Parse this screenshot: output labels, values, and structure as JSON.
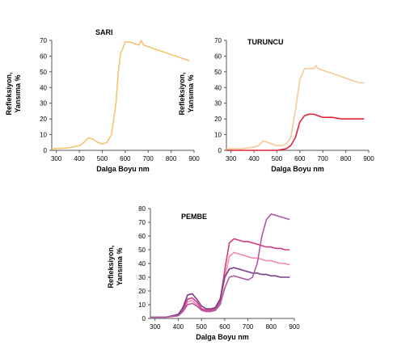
{
  "colors": {
    "yellow": "#f5c46e",
    "light_orange": "#f8c896",
    "red": "#e0253a",
    "light_pink": "#f08cb0",
    "magenta": "#d23c82",
    "purple": "#7a3c8c",
    "violet": "#b45aa0",
    "axis": "#555555"
  },
  "chart_data": [
    {
      "type": "line",
      "title": "SARI",
      "xlabel": "Dalga Boyu nm",
      "ylabel": [
        "Refleksiyon,",
        "Yansıma %"
      ],
      "xlim": [
        280,
        900
      ],
      "ylim": [
        0,
        70
      ],
      "x_ticks": [
        300,
        400,
        500,
        600,
        700,
        800,
        900
      ],
      "y_ticks": [
        0,
        10,
        20,
        30,
        40,
        50,
        60,
        70
      ],
      "grid": false,
      "series": [
        {
          "color": "#f5c46e",
          "x": [
            280,
            350,
            400,
            420,
            440,
            460,
            480,
            500,
            520,
            540,
            560,
            570,
            580,
            590,
            600,
            620,
            640,
            660,
            670,
            680,
            700,
            720,
            740,
            760,
            780,
            800,
            820,
            840,
            860,
            880
          ],
          "y": [
            1,
            1.5,
            3,
            5,
            8,
            7,
            5,
            4,
            5,
            10,
            30,
            50,
            62,
            65,
            69,
            69,
            68,
            67,
            70,
            67,
            66,
            65,
            64,
            63,
            62,
            61,
            60,
            59,
            58,
            57
          ]
        }
      ]
    },
    {
      "type": "line",
      "title": "TURUNCU",
      "xlabel": "Dalga Boyu nm",
      "ylabel": [
        "Refleksiyon,",
        "Yansıma %"
      ],
      "xlim": [
        280,
        900
      ],
      "ylim": [
        0,
        70
      ],
      "x_ticks": [
        300,
        400,
        500,
        600,
        700,
        800,
        900
      ],
      "y_ticks": [
        0,
        10,
        20,
        30,
        40,
        50,
        60,
        70
      ],
      "grid": false,
      "series": [
        {
          "color": "#f8c896",
          "x": [
            280,
            350,
            400,
            420,
            440,
            460,
            480,
            500,
            520,
            540,
            560,
            580,
            600,
            620,
            640,
            660,
            670,
            680,
            700,
            720,
            740,
            760,
            780,
            800,
            820,
            840,
            860,
            880
          ],
          "y": [
            1,
            1,
            2,
            3,
            6,
            5,
            4,
            3,
            3,
            4,
            8,
            25,
            45,
            52,
            52,
            52,
            54,
            52,
            51,
            50,
            49,
            48,
            47,
            46,
            45,
            44,
            43,
            43
          ]
        },
        {
          "color": "#e0253a",
          "x": [
            280,
            350,
            400,
            450,
            500,
            540,
            560,
            580,
            600,
            620,
            640,
            660,
            680,
            700,
            740,
            780,
            820,
            860,
            880
          ],
          "y": [
            0,
            0,
            0,
            0,
            0,
            1,
            3,
            8,
            18,
            22,
            23,
            23,
            22,
            21,
            21,
            20,
            20,
            20,
            20
          ]
        }
      ]
    },
    {
      "type": "line",
      "title": "PEMBE",
      "xlabel": "Dalga Boyu nm",
      "ylabel": [
        "Refleksiyon,",
        "Yansıma %"
      ],
      "xlim": [
        280,
        900
      ],
      "ylim": [
        0,
        80
      ],
      "x_ticks": [
        300,
        400,
        500,
        600,
        700,
        800,
        900
      ],
      "y_ticks": [
        0,
        10,
        20,
        30,
        40,
        50,
        60,
        70,
        80
      ],
      "grid": false,
      "series": [
        {
          "color": "#f08cb0",
          "x": [
            280,
            350,
            400,
            420,
            440,
            460,
            480,
            500,
            520,
            540,
            560,
            580,
            600,
            620,
            640,
            660,
            680,
            700,
            720,
            740,
            760,
            780,
            800,
            820,
            840,
            860,
            880
          ],
          "y": [
            1,
            1,
            2,
            5,
            12,
            13,
            10,
            6,
            5,
            5,
            6,
            10,
            30,
            45,
            48,
            47,
            46,
            45,
            44,
            44,
            43,
            42,
            42,
            41,
            40,
            40,
            39
          ]
        },
        {
          "color": "#d23c82",
          "x": [
            280,
            350,
            400,
            420,
            440,
            460,
            480,
            500,
            520,
            540,
            560,
            580,
            600,
            620,
            640,
            660,
            680,
            700,
            720,
            740,
            760,
            780,
            800,
            820,
            840,
            860,
            880
          ],
          "y": [
            1,
            1,
            2,
            6,
            14,
            15,
            12,
            7,
            6,
            6,
            7,
            12,
            35,
            55,
            58,
            57,
            56,
            56,
            55,
            54,
            53,
            52,
            52,
            51,
            51,
            50,
            50
          ]
        },
        {
          "color": "#7a3c8c",
          "x": [
            280,
            350,
            400,
            420,
            440,
            460,
            480,
            500,
            520,
            540,
            560,
            580,
            600,
            620,
            640,
            660,
            680,
            700,
            720,
            740,
            760,
            780,
            800,
            820,
            840,
            860,
            880
          ],
          "y": [
            1,
            1,
            3,
            8,
            17,
            18,
            14,
            9,
            7,
            7,
            8,
            14,
            30,
            36,
            37,
            36,
            35,
            34,
            33,
            33,
            32,
            32,
            31,
            31,
            30,
            30,
            30
          ]
        },
        {
          "color": "#b45aa0",
          "x": [
            280,
            350,
            400,
            420,
            440,
            460,
            480,
            500,
            520,
            540,
            560,
            580,
            600,
            620,
            640,
            660,
            680,
            700,
            720,
            740,
            760,
            780,
            800,
            820,
            840,
            860,
            880
          ],
          "y": [
            1,
            1,
            2,
            5,
            10,
            11,
            9,
            6,
            5,
            5,
            6,
            10,
            22,
            30,
            31,
            30,
            29,
            28,
            30,
            40,
            60,
            72,
            76,
            75,
            74,
            73,
            72
          ]
        }
      ]
    }
  ]
}
